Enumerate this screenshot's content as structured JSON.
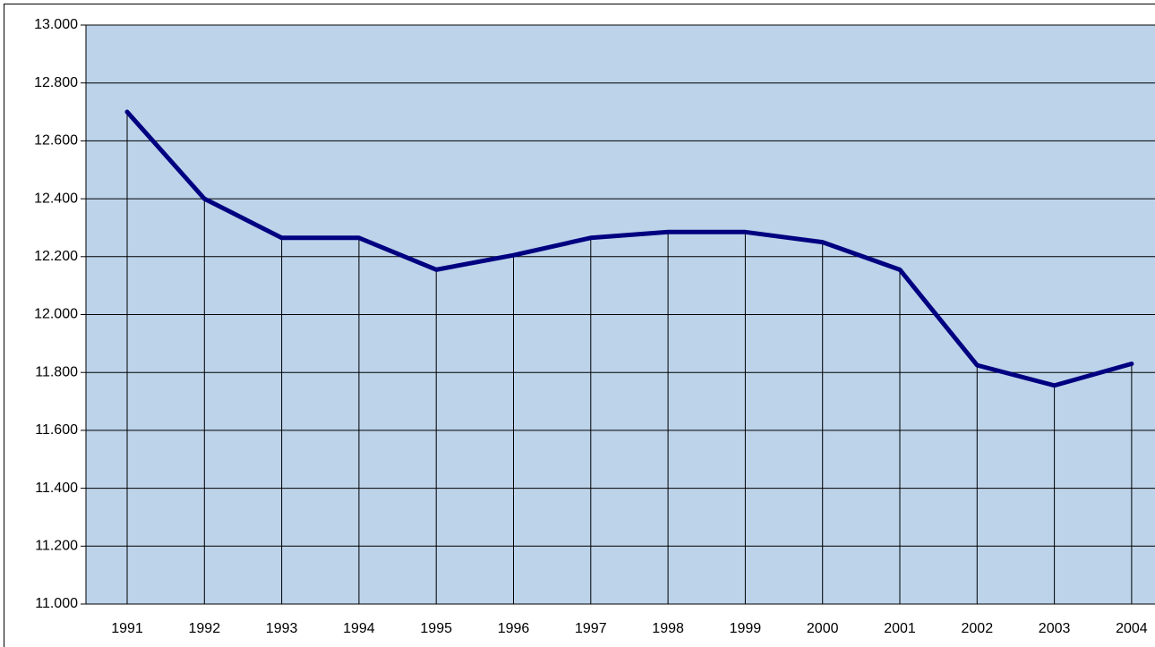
{
  "chart_data": {
    "type": "line",
    "categories": [
      "1991",
      "1992",
      "1993",
      "1994",
      "1995",
      "1996",
      "1997",
      "1998",
      "1999",
      "2000",
      "2001",
      "2002",
      "2003",
      "2004"
    ],
    "values": [
      12700,
      12400,
      12265,
      12265,
      12155,
      12205,
      12265,
      12285,
      12285,
      12250,
      12155,
      11825,
      11755,
      11830
    ],
    "color": "#000080",
    "ylim": [
      11000,
      13000
    ],
    "yticks": [
      {
        "value": 11000,
        "label": "11.000"
      },
      {
        "value": 11200,
        "label": "11.200"
      },
      {
        "value": 11400,
        "label": "11.400"
      },
      {
        "value": 11600,
        "label": "11.600"
      },
      {
        "value": 11800,
        "label": "11.800"
      },
      {
        "value": 12000,
        "label": "12.000"
      },
      {
        "value": 12200,
        "label": "12.200"
      },
      {
        "value": 12400,
        "label": "12.400"
      },
      {
        "value": 12600,
        "label": "12.600"
      },
      {
        "value": 12800,
        "label": "12.800"
      },
      {
        "value": 13000,
        "label": "13.000"
      }
    ],
    "grid": true,
    "drop_lines": true
  }
}
